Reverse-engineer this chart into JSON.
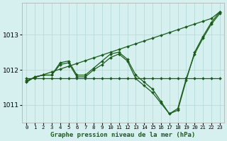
{
  "title": "Graphe pression niveau de la mer (hPa)",
  "bg_color": "#d6f0f0",
  "grid_color": "#b0d8d8",
  "line_color": "#1a5c1a",
  "x_labels": [
    "0",
    "1",
    "2",
    "3",
    "4",
    "5",
    "6",
    "7",
    "8",
    "9",
    "10",
    "11",
    "12",
    "13",
    "14",
    "15",
    "16",
    "17",
    "18",
    "19",
    "20",
    "21",
    "22",
    "23"
  ],
  "ylim": [
    1010.5,
    1013.9
  ],
  "yticks": [
    1011,
    1012,
    1013
  ],
  "hours": [
    0,
    1,
    2,
    3,
    4,
    5,
    6,
    7,
    8,
    9,
    10,
    11,
    12,
    13,
    14,
    15,
    16,
    17,
    18,
    19,
    20,
    21,
    22,
    23
  ],
  "line_diagonal": [
    1011.7,
    1011.78,
    1011.86,
    1011.94,
    1012.02,
    1012.1,
    1012.18,
    1012.26,
    1012.34,
    1012.42,
    1012.5,
    1012.58,
    1012.66,
    1012.74,
    1012.82,
    1012.9,
    1012.98,
    1013.06,
    1013.14,
    1013.22,
    1013.3,
    1013.38,
    1013.46,
    1013.65
  ],
  "line_flat": [
    1011.75,
    1011.75,
    1011.75,
    1011.75,
    1011.75,
    1011.75,
    1011.75,
    1011.75,
    1011.75,
    1011.75,
    1011.75,
    1011.75,
    1011.75,
    1011.75,
    1011.75,
    1011.75,
    1011.75,
    1011.75,
    1011.75,
    1011.75,
    1011.75,
    1011.75,
    1011.75,
    1011.75
  ],
  "line_wavy1": [
    1011.65,
    1011.8,
    1011.85,
    1011.85,
    1012.2,
    1012.25,
    1011.85,
    1011.85,
    1012.05,
    1012.25,
    1012.45,
    1012.5,
    1012.3,
    1011.85,
    1011.65,
    1011.45,
    1011.1,
    1010.75,
    1010.85,
    1011.7,
    1012.5,
    1012.95,
    1013.35,
    1013.65
  ],
  "line_wavy2": [
    1011.65,
    1011.8,
    1011.85,
    1011.85,
    1012.15,
    1012.2,
    1011.8,
    1011.8,
    1012.0,
    1012.15,
    1012.35,
    1012.45,
    1012.25,
    1011.75,
    1011.55,
    1011.35,
    1011.05,
    1010.75,
    1010.9,
    1011.75,
    1012.45,
    1012.9,
    1013.3,
    1013.6
  ]
}
